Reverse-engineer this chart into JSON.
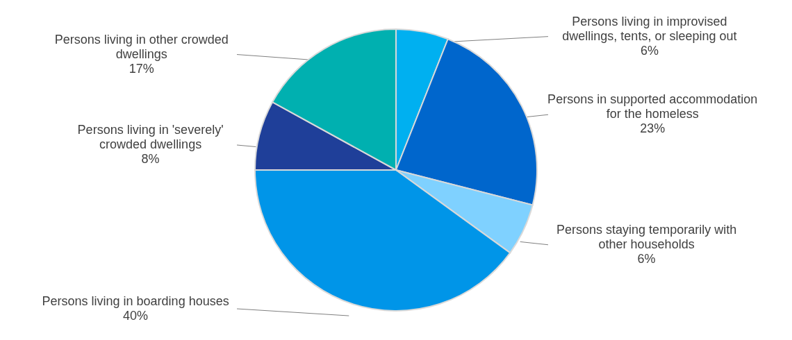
{
  "chart_data": {
    "type": "pie",
    "categories": [
      "Persons living in improvised dwellings, tents, or sleeping out",
      "Persons in supported accommodation for the homeless",
      "Persons staying temporarily with other households",
      "Persons living in boarding houses",
      "Persons living in 'severely' crowded dwellings",
      "Persons living in other crowded dwellings"
    ],
    "values": [
      6,
      23,
      6,
      40,
      8,
      17
    ],
    "colors": [
      "#00b0f0",
      "#0066cc",
      "#7fd1ff",
      "#0095e8",
      "#1f3f99",
      "#00b0b0"
    ],
    "value_labels": [
      "6%",
      "23%",
      "6%",
      "40%",
      "8%",
      "17%"
    ]
  }
}
